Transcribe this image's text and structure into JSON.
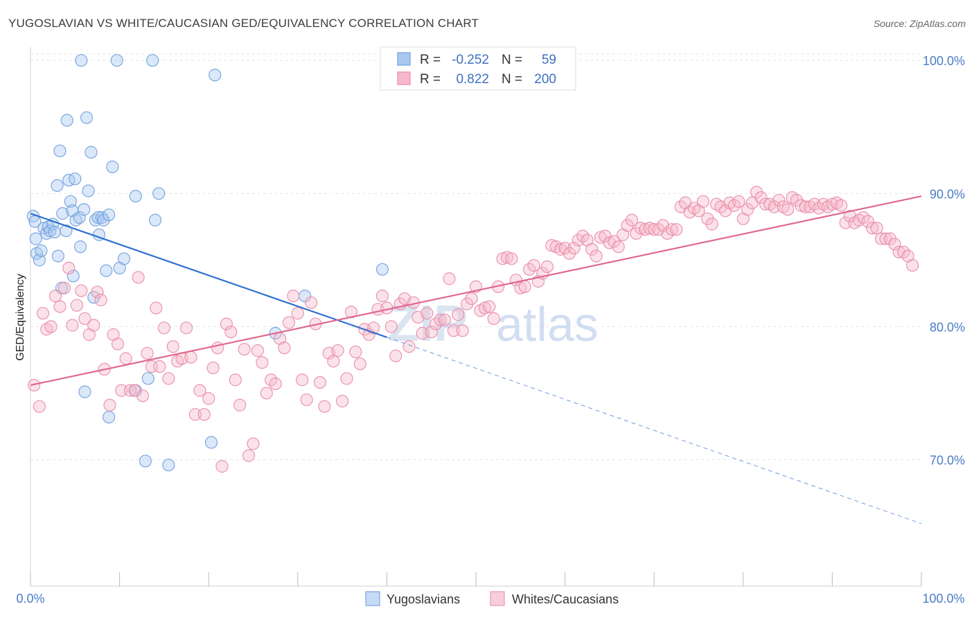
{
  "header": {
    "title": "YUGOSLAVIAN VS WHITE/CAUCASIAN GED/EQUIVALENCY CORRELATION CHART",
    "source": "Source: ZipAtlas.com"
  },
  "watermark": {
    "zip": "ZIP",
    "atlas": "atlas"
  },
  "legend": {
    "rows": [
      {
        "r_label": "R =",
        "r_value": "-0.252",
        "n_label": "N =",
        "n_value": "59",
        "color": "#a9c8f0",
        "stroke": "#6f9fdc"
      },
      {
        "r_label": "R =",
        "r_value": "0.822",
        "n_label": "N =",
        "n_value": "200",
        "color": "#f6b9cb",
        "stroke": "#e88aa8"
      }
    ]
  },
  "bottom_legend": [
    {
      "label": "Yugoslavians",
      "color": "#c5daf5",
      "stroke": "#7aa5de"
    },
    {
      "label": "Whites/Caucasians",
      "color": "#f9cdd9",
      "stroke": "#e89ab2"
    }
  ],
  "chart_data": {
    "type": "scatter",
    "title": "YUGOSLAVIAN VS WHITE/CAUCASIAN GED/EQUIVALENCY CORRELATION CHART",
    "xlabel": "",
    "ylabel": "GED/Equivalency",
    "xlim": [
      0,
      100
    ],
    "ylim": [
      60.5,
      101
    ],
    "x_tick_labels": [
      "0.0%",
      "100.0%"
    ],
    "y_ticks": [
      70,
      80,
      90,
      100
    ],
    "y_tick_labels": [
      "70.0%",
      "80.0%",
      "90.0%",
      "100.0%"
    ],
    "grid": true,
    "legend_position": "top-center",
    "series": [
      {
        "name": "Yugoslavians",
        "color": "#a9c8f0",
        "stroke": "#6f9fdc",
        "trend": {
          "x0": 0,
          "y0": 88.5,
          "x1": 40,
          "y1": 79.2,
          "dash_to_x": 100,
          "dash_to_y": 65.2,
          "color": "#2f6fd0"
        },
        "points": [
          [
            0.3,
            88.3
          ],
          [
            0.5,
            87.9
          ],
          [
            0.6,
            86.6
          ],
          [
            0.7,
            85.5
          ],
          [
            1.0,
            85.0
          ],
          [
            1.2,
            85.7
          ],
          [
            1.5,
            87.4
          ],
          [
            1.8,
            87.0
          ],
          [
            2.0,
            87.5
          ],
          [
            2.2,
            87.2
          ],
          [
            2.5,
            87.7
          ],
          [
            2.7,
            87.1
          ],
          [
            3.0,
            90.6
          ],
          [
            3.3,
            93.2
          ],
          [
            3.6,
            88.5
          ],
          [
            4.0,
            87.2
          ],
          [
            4.1,
            95.5
          ],
          [
            4.3,
            91.0
          ],
          [
            4.5,
            89.4
          ],
          [
            4.7,
            88.7
          ],
          [
            5.0,
            91.1
          ],
          [
            5.1,
            88.0
          ],
          [
            5.5,
            88.2
          ],
          [
            5.6,
            86.0
          ],
          [
            5.7,
            100.0
          ],
          [
            6.0,
            88.8
          ],
          [
            6.3,
            95.7
          ],
          [
            6.5,
            90.2
          ],
          [
            6.8,
            93.1
          ],
          [
            7.1,
            82.2
          ],
          [
            7.3,
            88.0
          ],
          [
            7.6,
            88.2
          ],
          [
            7.7,
            86.9
          ],
          [
            8.0,
            88.2
          ],
          [
            8.2,
            88.0
          ],
          [
            8.5,
            84.2
          ],
          [
            8.8,
            88.4
          ],
          [
            9.2,
            92.0
          ],
          [
            9.7,
            100.0
          ],
          [
            10.0,
            84.4
          ],
          [
            10.5,
            85.1
          ],
          [
            11.8,
            89.8
          ],
          [
            13.2,
            76.1
          ],
          [
            14.0,
            88.0
          ],
          [
            14.4,
            90.0
          ],
          [
            13.7,
            100.0
          ],
          [
            20.7,
            98.9
          ],
          [
            30.8,
            82.3
          ],
          [
            27.5,
            79.5
          ],
          [
            39.5,
            84.3
          ],
          [
            6.1,
            75.1
          ],
          [
            8.8,
            73.2
          ],
          [
            11.8,
            75.2
          ],
          [
            12.9,
            69.9
          ],
          [
            15.5,
            69.6
          ],
          [
            20.3,
            71.3
          ],
          [
            3.5,
            82.9
          ],
          [
            3.1,
            85.3
          ],
          [
            4.8,
            83.8
          ]
        ]
      },
      {
        "name": "Whites/Caucasians",
        "color": "#f6b9cb",
        "stroke": "#e88aa8",
        "trend": {
          "x0": 0,
          "y0": 75.6,
          "x1": 100,
          "y1": 89.8,
          "color": "#e0688f"
        },
        "points": [
          [
            0.4,
            75.6
          ],
          [
            1.0,
            74.0
          ],
          [
            1.4,
            81.0
          ],
          [
            1.8,
            79.8
          ],
          [
            2.3,
            80.0
          ],
          [
            2.8,
            82.3
          ],
          [
            3.3,
            81.5
          ],
          [
            3.8,
            82.9
          ],
          [
            4.3,
            84.4
          ],
          [
            4.7,
            80.1
          ],
          [
            5.2,
            81.6
          ],
          [
            5.7,
            82.7
          ],
          [
            6.1,
            80.6
          ],
          [
            6.6,
            79.4
          ],
          [
            7.1,
            80.1
          ],
          [
            7.5,
            82.6
          ],
          [
            7.9,
            82.0
          ],
          [
            8.3,
            76.8
          ],
          [
            8.9,
            74.1
          ],
          [
            9.3,
            79.4
          ],
          [
            9.8,
            78.7
          ],
          [
            10.2,
            75.2
          ],
          [
            10.7,
            77.6
          ],
          [
            11.2,
            75.2
          ],
          [
            11.7,
            75.2
          ],
          [
            12.1,
            83.7
          ],
          [
            12.6,
            74.8
          ],
          [
            13.1,
            78.0
          ],
          [
            13.6,
            77.0
          ],
          [
            14.1,
            81.4
          ],
          [
            14.5,
            77.0
          ],
          [
            15.0,
            79.9
          ],
          [
            15.5,
            76.1
          ],
          [
            16.0,
            78.5
          ],
          [
            16.5,
            77.4
          ],
          [
            17.0,
            77.6
          ],
          [
            17.5,
            79.9
          ],
          [
            18.0,
            77.7
          ],
          [
            18.5,
            73.4
          ],
          [
            19.0,
            75.2
          ],
          [
            19.5,
            73.4
          ],
          [
            20.0,
            74.6
          ],
          [
            20.5,
            76.9
          ],
          [
            21.0,
            78.4
          ],
          [
            21.5,
            69.5
          ],
          [
            22.0,
            80.2
          ],
          [
            22.5,
            79.6
          ],
          [
            23.0,
            76.0
          ],
          [
            23.5,
            74.1
          ],
          [
            24.0,
            78.3
          ],
          [
            24.5,
            70.3
          ],
          [
            25.0,
            71.2
          ],
          [
            25.5,
            78.2
          ],
          [
            26.0,
            77.3
          ],
          [
            26.5,
            75.0
          ],
          [
            27.0,
            76.0
          ],
          [
            27.5,
            75.7
          ],
          [
            28.0,
            79.1
          ],
          [
            28.5,
            78.4
          ],
          [
            29.0,
            80.3
          ],
          [
            29.5,
            82.3
          ],
          [
            30.0,
            81.0
          ],
          [
            30.5,
            76.0
          ],
          [
            31.0,
            74.5
          ],
          [
            31.5,
            81.8
          ],
          [
            32.0,
            80.2
          ],
          [
            32.5,
            75.8
          ],
          [
            33.0,
            74.0
          ],
          [
            33.5,
            78.0
          ],
          [
            34.0,
            77.4
          ],
          [
            34.5,
            78.2
          ],
          [
            35.0,
            74.4
          ],
          [
            35.5,
            76.1
          ],
          [
            36.0,
            81.1
          ],
          [
            36.5,
            78.1
          ],
          [
            37.0,
            77.2
          ],
          [
            37.5,
            79.8
          ],
          [
            38.0,
            79.4
          ],
          [
            38.5,
            79.9
          ],
          [
            39.0,
            81.3
          ],
          [
            39.5,
            82.3
          ],
          [
            40.0,
            81.4
          ],
          [
            40.5,
            80.0
          ],
          [
            41.0,
            77.8
          ],
          [
            41.5,
            81.7
          ],
          [
            42.0,
            82.1
          ],
          [
            42.5,
            78.5
          ],
          [
            43.0,
            81.8
          ],
          [
            43.5,
            80.7
          ],
          [
            44.0,
            79.5
          ],
          [
            44.5,
            81.0
          ],
          [
            45.0,
            79.6
          ],
          [
            45.5,
            80.2
          ],
          [
            46.0,
            80.5
          ],
          [
            46.5,
            80.5
          ],
          [
            47.0,
            83.6
          ],
          [
            47.5,
            79.7
          ],
          [
            48.0,
            80.9
          ],
          [
            48.5,
            79.7
          ],
          [
            49.0,
            81.7
          ],
          [
            49.5,
            82.1
          ],
          [
            50.0,
            83.0
          ],
          [
            50.5,
            81.2
          ],
          [
            51.0,
            81.4
          ],
          [
            51.5,
            81.5
          ],
          [
            52.0,
            80.6
          ],
          [
            52.5,
            83.0
          ],
          [
            53.0,
            85.1
          ],
          [
            53.5,
            85.2
          ],
          [
            54.0,
            85.1
          ],
          [
            54.5,
            83.5
          ],
          [
            55.0,
            82.9
          ],
          [
            55.5,
            83.0
          ],
          [
            56.0,
            84.3
          ],
          [
            56.5,
            84.6
          ],
          [
            57.0,
            83.4
          ],
          [
            57.5,
            84.0
          ],
          [
            58.0,
            84.5
          ],
          [
            58.5,
            86.1
          ],
          [
            59.0,
            86.0
          ],
          [
            59.5,
            85.8
          ],
          [
            60.0,
            85.9
          ],
          [
            60.5,
            85.5
          ],
          [
            61.0,
            85.9
          ],
          [
            61.5,
            86.5
          ],
          [
            62.0,
            86.8
          ],
          [
            62.5,
            86.5
          ],
          [
            63.0,
            85.8
          ],
          [
            63.5,
            85.3
          ],
          [
            64.0,
            86.7
          ],
          [
            64.5,
            86.8
          ],
          [
            65.0,
            86.3
          ],
          [
            65.5,
            86.4
          ],
          [
            66.0,
            86.0
          ],
          [
            66.5,
            86.9
          ],
          [
            67.0,
            87.6
          ],
          [
            67.5,
            88.0
          ],
          [
            68.0,
            87.0
          ],
          [
            68.5,
            87.4
          ],
          [
            69.0,
            87.3
          ],
          [
            69.5,
            87.4
          ],
          [
            70.0,
            87.3
          ],
          [
            70.5,
            87.3
          ],
          [
            71.0,
            87.6
          ],
          [
            71.5,
            87.0
          ],
          [
            72.0,
            87.3
          ],
          [
            72.5,
            87.3
          ],
          [
            73.0,
            89.0
          ],
          [
            73.5,
            89.3
          ],
          [
            74.0,
            88.6
          ],
          [
            74.5,
            88.9
          ],
          [
            75.0,
            88.7
          ],
          [
            75.5,
            89.4
          ],
          [
            76.0,
            88.1
          ],
          [
            76.5,
            87.7
          ],
          [
            77.0,
            89.2
          ],
          [
            77.5,
            89.0
          ],
          [
            78.0,
            88.7
          ],
          [
            78.5,
            89.3
          ],
          [
            79.0,
            89.1
          ],
          [
            79.5,
            89.4
          ],
          [
            80.0,
            88.1
          ],
          [
            80.5,
            88.8
          ],
          [
            81.0,
            89.3
          ],
          [
            81.5,
            90.1
          ],
          [
            82.0,
            89.7
          ],
          [
            82.5,
            89.2
          ],
          [
            83.0,
            89.2
          ],
          [
            83.5,
            89.0
          ],
          [
            84.0,
            89.5
          ],
          [
            84.5,
            89.0
          ],
          [
            85.0,
            88.8
          ],
          [
            85.5,
            89.7
          ],
          [
            86.0,
            89.5
          ],
          [
            86.5,
            89.1
          ],
          [
            87.0,
            89.0
          ],
          [
            87.5,
            89.0
          ],
          [
            88.0,
            89.2
          ],
          [
            88.5,
            88.9
          ],
          [
            89.0,
            89.2
          ],
          [
            89.5,
            89.0
          ],
          [
            90.0,
            89.2
          ],
          [
            90.5,
            89.3
          ],
          [
            91.0,
            89.1
          ],
          [
            91.5,
            87.8
          ],
          [
            92.0,
            88.3
          ],
          [
            92.5,
            87.8
          ],
          [
            93.0,
            88.0
          ],
          [
            93.5,
            88.2
          ],
          [
            94.0,
            87.9
          ],
          [
            94.5,
            87.4
          ],
          [
            95.0,
            87.4
          ],
          [
            95.5,
            86.6
          ],
          [
            96.0,
            86.6
          ],
          [
            96.5,
            86.6
          ],
          [
            97.0,
            86.2
          ],
          [
            97.5,
            85.6
          ],
          [
            98.0,
            85.6
          ],
          [
            98.5,
            85.3
          ],
          [
            99.0,
            84.6
          ]
        ]
      }
    ]
  }
}
